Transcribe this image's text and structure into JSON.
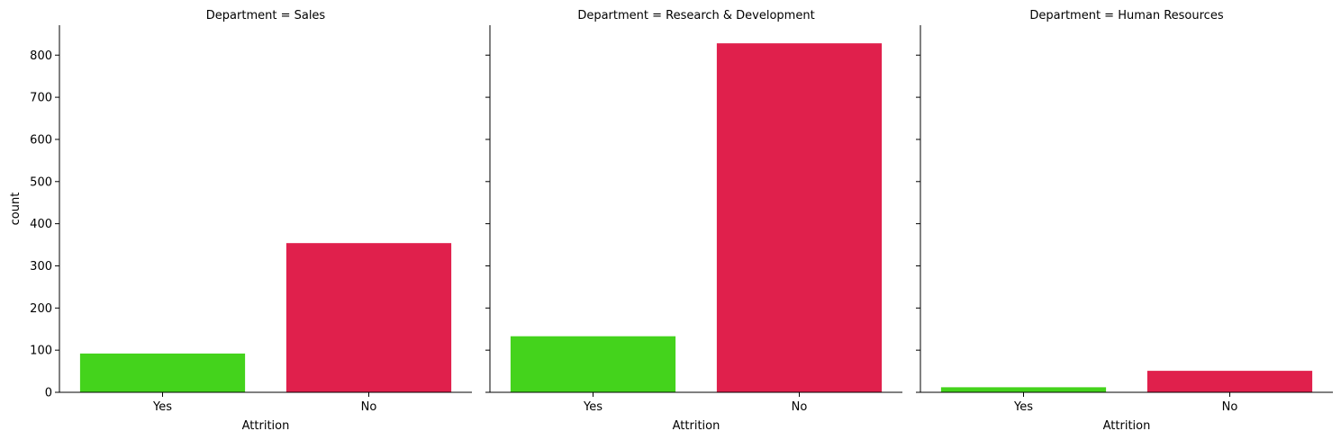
{
  "chart_data": [
    {
      "type": "bar",
      "title": "Department = Sales",
      "xlabel": "Attrition",
      "ylabel": "count",
      "categories": [
        "Yes",
        "No"
      ],
      "values": [
        92,
        354
      ],
      "colors": [
        "#44d31c",
        "#e0204c"
      ],
      "ylim": [
        0,
        871
      ],
      "yticks": [
        0,
        100,
        200,
        300,
        400,
        500,
        600,
        700,
        800
      ],
      "grid": false
    },
    {
      "type": "bar",
      "title": "Department = Research & Development",
      "xlabel": "Attrition",
      "ylabel": "",
      "categories": [
        "Yes",
        "No"
      ],
      "values": [
        133,
        828
      ],
      "colors": [
        "#44d31c",
        "#e0204c"
      ],
      "ylim": [
        0,
        871
      ],
      "yticks": [
        0,
        100,
        200,
        300,
        400,
        500,
        600,
        700,
        800
      ],
      "grid": false
    },
    {
      "type": "bar",
      "title": "Department = Human Resources",
      "xlabel": "Attrition",
      "ylabel": "",
      "categories": [
        "Yes",
        "No"
      ],
      "values": [
        12,
        51
      ],
      "colors": [
        "#44d31c",
        "#e0204c"
      ],
      "ylim": [
        0,
        871
      ],
      "yticks": [
        0,
        100,
        200,
        300,
        400,
        500,
        600,
        700,
        800
      ],
      "grid": false
    }
  ]
}
